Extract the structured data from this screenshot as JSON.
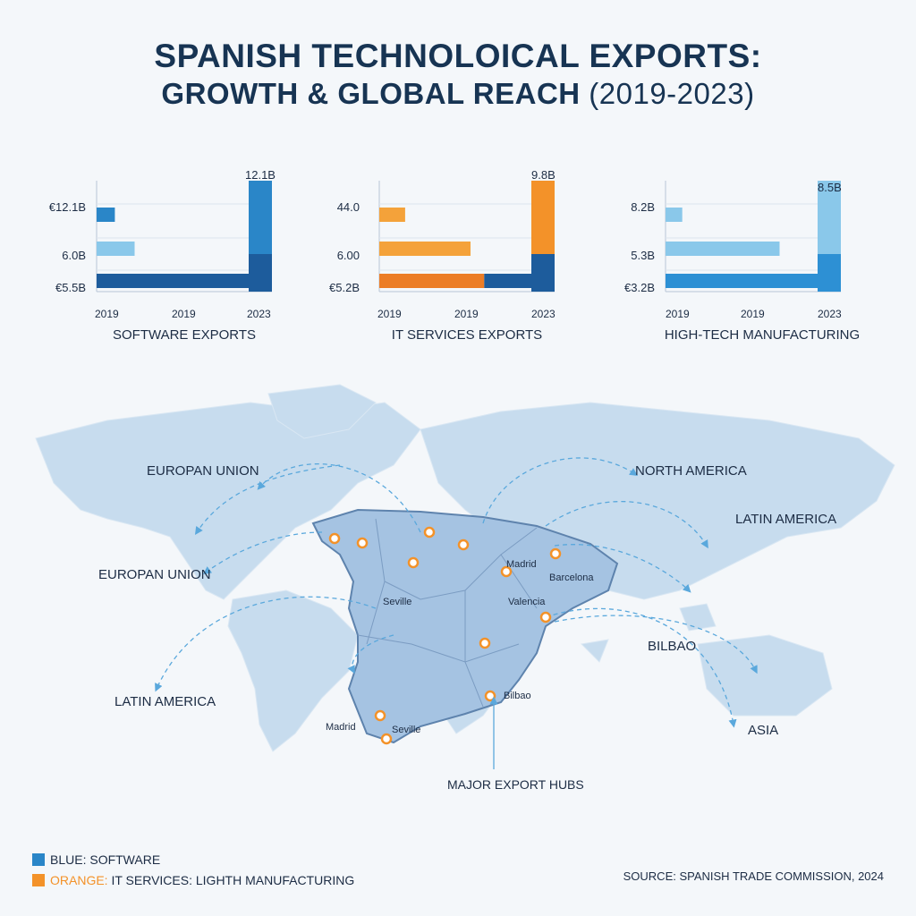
{
  "title": {
    "line1": "SPANISH TECHNOLOICAL EXPORTS:",
    "line2": "GROWTH & GLOBAL REACH",
    "line2_years": "(2019-2023)"
  },
  "chart_data": [
    {
      "type": "bar",
      "title": "SOFTWARE EXPORTS",
      "y_labels": [
        "€12.1B",
        "6.0B",
        "€5.5B"
      ],
      "x_labels": [
        "2019",
        "2019",
        "2023"
      ],
      "top_label": "12.1B",
      "bars": [
        {
          "orientation": "horizontal",
          "row": 1,
          "value": 0.12,
          "color": "#2a86c8"
        },
        {
          "orientation": "horizontal",
          "row": 2,
          "value": 0.25,
          "color": "#8ac8ea"
        },
        {
          "orientation": "horizontal",
          "row": 3,
          "value": 1.0,
          "color": "#1d5c9c"
        },
        {
          "orientation": "vertical",
          "value": 1.0,
          "color": "#2a86c8",
          "base_color": "#1d5c9c"
        }
      ]
    },
    {
      "type": "bar",
      "title": "IT SERVICES EXPORTS",
      "y_labels": [
        "44.0",
        "6.00",
        "€5.2B"
      ],
      "x_labels": [
        "2019",
        "2019",
        "2023"
      ],
      "top_label": "9.8B",
      "bars": [
        {
          "orientation": "horizontal",
          "row": 1,
          "value": 0.17,
          "color": "#f4a23a"
        },
        {
          "orientation": "horizontal",
          "row": 2,
          "value": 0.6,
          "color": "#f4a23a"
        },
        {
          "orientation": "horizontal",
          "row": 3,
          "value": 1.0,
          "color": "#ec7d26",
          "second_color": "#1d5c9c",
          "split": 0.69
        },
        {
          "orientation": "vertical",
          "value": 1.0,
          "color": "#f39229",
          "base_color": "#1d5c9c"
        }
      ]
    },
    {
      "type": "bar",
      "title": "HIGH-TECH MANUFACTURING",
      "y_labels": [
        "8.2B",
        "5.3B",
        "€3.2B"
      ],
      "x_labels": [
        "2019",
        "2019",
        "2023"
      ],
      "top_label": "8.5B",
      "bars": [
        {
          "orientation": "horizontal",
          "row": 1,
          "value": 0.11,
          "color": "#8ac8ea"
        },
        {
          "orientation": "horizontal",
          "row": 2,
          "value": 0.75,
          "color": "#8ac8ea"
        },
        {
          "orientation": "horizontal",
          "row": 3,
          "value": 1.0,
          "color": "#2d90d4"
        },
        {
          "orientation": "vertical",
          "value": 1.0,
          "color": "#8ac8ea",
          "base_color": "#2d90d4"
        }
      ]
    }
  ],
  "map": {
    "regions": [
      "EUROPAN UNION",
      "NORTH AMERICA",
      "LATIN AMERICA",
      "EUROPAN UNION",
      "BILBAO",
      "LATIN AMERICA",
      "ASIA"
    ],
    "cities": [
      "Madrid",
      "Barcelona",
      "Seville",
      "Valencia",
      "Bilbao",
      "Madrid",
      "Seville"
    ],
    "hubs_label": "MAJOR EXPORT HUBS"
  },
  "legend": {
    "blue_label": "BLUE: SOFTWARE",
    "orange_label": "ORANGE:",
    "orange_rest": " IT SERVICES: LIGHTH MANUFACTURING",
    "blue_color": "#2a86c8",
    "orange_color": "#f39229"
  },
  "source": "SOURCE: SPANISH TRADE COMMISSION, 2024"
}
